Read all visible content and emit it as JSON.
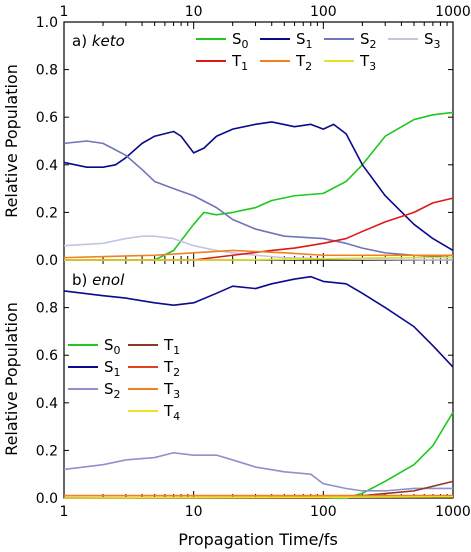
{
  "chart_data": [
    {
      "type": "line",
      "panel_label": "a)",
      "panel_name": "keto",
      "xscale": "log",
      "xlim": [
        1,
        1000
      ],
      "ylim": [
        0.0,
        1.0
      ],
      "ylabel": "Relative Population",
      "xticks": [
        "1",
        "10",
        "100",
        "1000"
      ],
      "xticks_position": "top",
      "yticks": [
        "0.0",
        "0.2",
        "0.4",
        "0.6",
        "0.8",
        "1.0"
      ],
      "legend_position": "top-right",
      "series": [
        {
          "name": "S0",
          "sub": "0",
          "base": "S",
          "color": "#1ec81e",
          "points": [
            [
              1,
              0
            ],
            [
              5,
              0
            ],
            [
              7,
              0.04
            ],
            [
              10,
              0.15
            ],
            [
              12,
              0.2
            ],
            [
              15,
              0.19
            ],
            [
              20,
              0.2
            ],
            [
              30,
              0.22
            ],
            [
              40,
              0.25
            ],
            [
              60,
              0.27
            ],
            [
              100,
              0.28
            ],
            [
              150,
              0.33
            ],
            [
              200,
              0.4
            ],
            [
              300,
              0.52
            ],
            [
              500,
              0.59
            ],
            [
              700,
              0.61
            ],
            [
              1000,
              0.62
            ]
          ]
        },
        {
          "name": "S1",
          "sub": "1",
          "base": "S",
          "color": "#0a0a8c",
          "points": [
            [
              1,
              0.41
            ],
            [
              1.5,
              0.39
            ],
            [
              2,
              0.39
            ],
            [
              2.5,
              0.4
            ],
            [
              3,
              0.43
            ],
            [
              4,
              0.49
            ],
            [
              5,
              0.52
            ],
            [
              7,
              0.54
            ],
            [
              8,
              0.52
            ],
            [
              10,
              0.45
            ],
            [
              12,
              0.47
            ],
            [
              15,
              0.52
            ],
            [
              20,
              0.55
            ],
            [
              30,
              0.57
            ],
            [
              40,
              0.58
            ],
            [
              60,
              0.56
            ],
            [
              80,
              0.57
            ],
            [
              100,
              0.55
            ],
            [
              120,
              0.57
            ],
            [
              150,
              0.53
            ],
            [
              200,
              0.4
            ],
            [
              300,
              0.27
            ],
            [
              500,
              0.15
            ],
            [
              700,
              0.09
            ],
            [
              1000,
              0.04
            ]
          ]
        },
        {
          "name": "S2",
          "sub": "2",
          "base": "S",
          "color": "#7074b8",
          "points": [
            [
              1,
              0.49
            ],
            [
              1.5,
              0.5
            ],
            [
              2,
              0.49
            ],
            [
              3,
              0.44
            ],
            [
              4,
              0.38
            ],
            [
              5,
              0.33
            ],
            [
              7,
              0.3
            ],
            [
              10,
              0.27
            ],
            [
              15,
              0.22
            ],
            [
              20,
              0.17
            ],
            [
              30,
              0.13
            ],
            [
              50,
              0.1
            ],
            [
              100,
              0.09
            ],
            [
              150,
              0.07
            ],
            [
              200,
              0.05
            ],
            [
              300,
              0.03
            ],
            [
              500,
              0.02
            ],
            [
              1000,
              0.01
            ]
          ]
        },
        {
          "name": "S3",
          "sub": "3",
          "base": "S",
          "color": "#c4c4e4",
          "points": [
            [
              1,
              0.06
            ],
            [
              2,
              0.07
            ],
            [
              3,
              0.09
            ],
            [
              4,
              0.1
            ],
            [
              5,
              0.1
            ],
            [
              7,
              0.09
            ],
            [
              10,
              0.06
            ],
            [
              15,
              0.04
            ],
            [
              20,
              0.03
            ],
            [
              30,
              0.02
            ],
            [
              50,
              0.01
            ],
            [
              100,
              0.005
            ],
            [
              1000,
              0.0
            ]
          ]
        },
        {
          "name": "T1",
          "sub": "1",
          "base": "T",
          "color": "#e01818",
          "points": [
            [
              1,
              0
            ],
            [
              10,
              0
            ],
            [
              20,
              0.02
            ],
            [
              40,
              0.04
            ],
            [
              60,
              0.05
            ],
            [
              100,
              0.07
            ],
            [
              150,
              0.09
            ],
            [
              200,
              0.12
            ],
            [
              300,
              0.16
            ],
            [
              500,
              0.2
            ],
            [
              700,
              0.24
            ],
            [
              1000,
              0.26
            ]
          ]
        },
        {
          "name": "T2",
          "sub": "2",
          "base": "T",
          "color": "#f08020",
          "points": [
            [
              1,
              0.01
            ],
            [
              5,
              0.02
            ],
            [
              10,
              0.03
            ],
            [
              20,
              0.04
            ],
            [
              50,
              0.03
            ],
            [
              100,
              0.02
            ],
            [
              200,
              0.02
            ],
            [
              500,
              0.02
            ],
            [
              1000,
              0.02
            ]
          ]
        },
        {
          "name": "T3",
          "sub": "3",
          "base": "T",
          "color": "#e8e020",
          "points": [
            [
              1,
              0
            ],
            [
              20,
              0
            ],
            [
              100,
              0.005
            ],
            [
              300,
              0.01
            ],
            [
              1000,
              0.01
            ]
          ]
        }
      ]
    },
    {
      "type": "line",
      "panel_label": "b)",
      "panel_name": "enol",
      "xscale": "log",
      "xlim": [
        1,
        1000
      ],
      "ylim": [
        0.0,
        1.0
      ],
      "xlabel": "Propagation Time/fs",
      "ylabel": "Relative Population",
      "xticks": [
        "1",
        "10",
        "100",
        "1000"
      ],
      "yticks": [
        "0.0",
        "0.2",
        "0.4",
        "0.6",
        "0.8"
      ],
      "legend_position": "middle-left",
      "series": [
        {
          "name": "S0",
          "sub": "0",
          "base": "S",
          "color": "#1ec81e",
          "points": [
            [
              1,
              0
            ],
            [
              150,
              0
            ],
            [
              200,
              0.02
            ],
            [
              300,
              0.07
            ],
            [
              500,
              0.14
            ],
            [
              700,
              0.22
            ],
            [
              1000,
              0.36
            ]
          ]
        },
        {
          "name": "S1",
          "sub": "1",
          "base": "S",
          "color": "#0a0a8c",
          "points": [
            [
              1,
              0.87
            ],
            [
              2,
              0.85
            ],
            [
              3,
              0.84
            ],
            [
              5,
              0.82
            ],
            [
              7,
              0.81
            ],
            [
              10,
              0.82
            ],
            [
              15,
              0.86
            ],
            [
              20,
              0.89
            ],
            [
              30,
              0.88
            ],
            [
              40,
              0.9
            ],
            [
              60,
              0.92
            ],
            [
              80,
              0.93
            ],
            [
              100,
              0.91
            ],
            [
              150,
              0.9
            ],
            [
              200,
              0.86
            ],
            [
              300,
              0.8
            ],
            [
              500,
              0.72
            ],
            [
              700,
              0.64
            ],
            [
              1000,
              0.55
            ]
          ]
        },
        {
          "name": "S2",
          "sub": "2",
          "base": "S",
          "color": "#9090cc",
          "points": [
            [
              1,
              0.12
            ],
            [
              2,
              0.14
            ],
            [
              3,
              0.16
            ],
            [
              5,
              0.17
            ],
            [
              7,
              0.19
            ],
            [
              10,
              0.18
            ],
            [
              15,
              0.18
            ],
            [
              20,
              0.16
            ],
            [
              30,
              0.13
            ],
            [
              50,
              0.11
            ],
            [
              80,
              0.1
            ],
            [
              100,
              0.06
            ],
            [
              150,
              0.04
            ],
            [
              200,
              0.03
            ],
            [
              300,
              0.03
            ],
            [
              500,
              0.04
            ],
            [
              1000,
              0.04
            ]
          ]
        },
        {
          "name": "T1",
          "sub": "1",
          "base": "T",
          "color": "#8b3a2a",
          "points": [
            [
              1,
              0
            ],
            [
              100,
              0
            ],
            [
              200,
              0.01
            ],
            [
              500,
              0.03
            ],
            [
              1000,
              0.07
            ]
          ]
        },
        {
          "name": "T2",
          "sub": "2",
          "base": "T",
          "color": "#e04020",
          "points": [
            [
              1,
              0.01
            ],
            [
              10,
              0.01
            ],
            [
              100,
              0.01
            ],
            [
              1000,
              0.01
            ]
          ]
        },
        {
          "name": "T3",
          "sub": "3",
          "base": "T",
          "color": "#f08020",
          "points": [
            [
              1,
              0.01
            ],
            [
              50,
              0.01
            ],
            [
              1000,
              0.01
            ]
          ]
        },
        {
          "name": "T4",
          "sub": "4",
          "base": "T",
          "color": "#f0e020",
          "points": [
            [
              1,
              0
            ],
            [
              1000,
              0.005
            ]
          ]
        }
      ]
    }
  ]
}
